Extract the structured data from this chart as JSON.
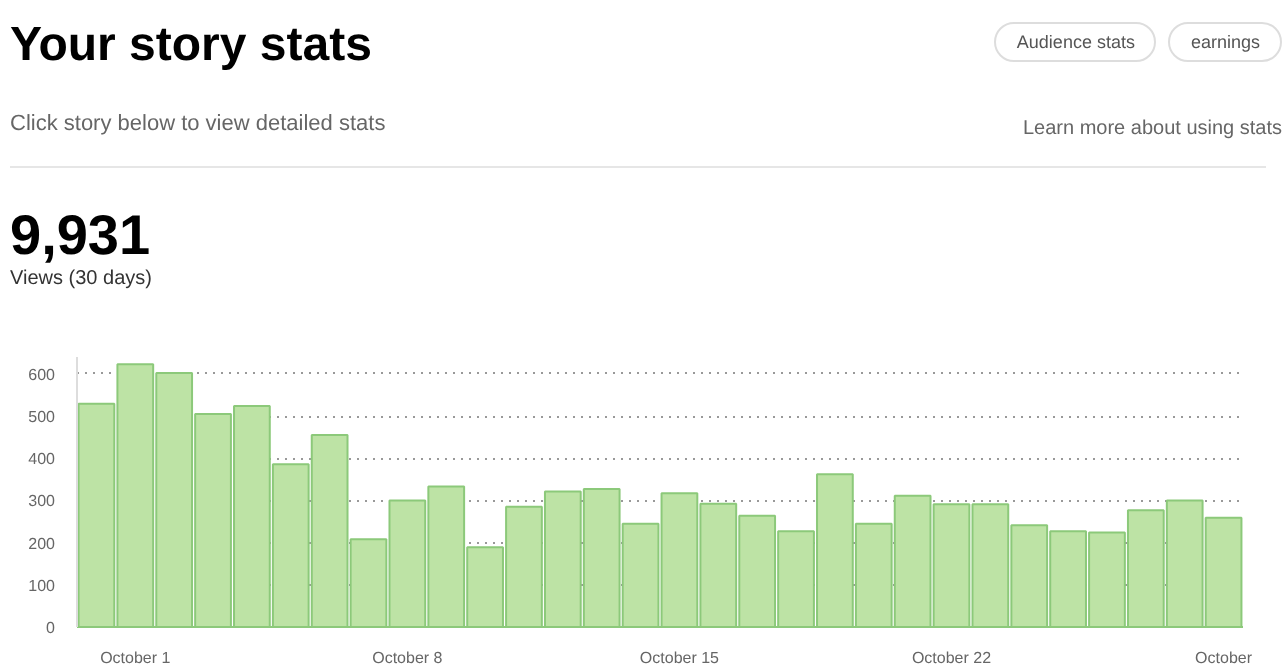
{
  "chart_data": {
    "type": "bar",
    "title": "Your story stats",
    "subtitle": "Click story below to view detailed stats",
    "annotations": [
      "Audience stats",
      "earnings",
      "Learn more about using stats",
      "9,931",
      "Views (30 days)"
    ],
    "categories": [
      null,
      "October 1",
      null,
      null,
      null,
      null,
      null,
      null,
      "October 8",
      null,
      null,
      null,
      null,
      null,
      null,
      "October 15",
      null,
      null,
      null,
      null,
      null,
      null,
      "October 22",
      null,
      null,
      null,
      null,
      null,
      null,
      "October"
    ],
    "values": [
      529,
      623,
      602,
      505,
      524,
      386,
      455,
      208,
      300,
      333,
      189,
      285,
      321,
      327,
      245,
      317,
      292,
      264,
      227,
      362,
      245,
      311,
      291,
      291,
      241,
      227,
      224,
      277,
      300,
      259
    ],
    "color": "#bde3a5",
    "ylim": [
      0,
      640
    ],
    "yticks": [
      0,
      100,
      200,
      300,
      400,
      500,
      600
    ],
    "grid": "y"
  }
}
